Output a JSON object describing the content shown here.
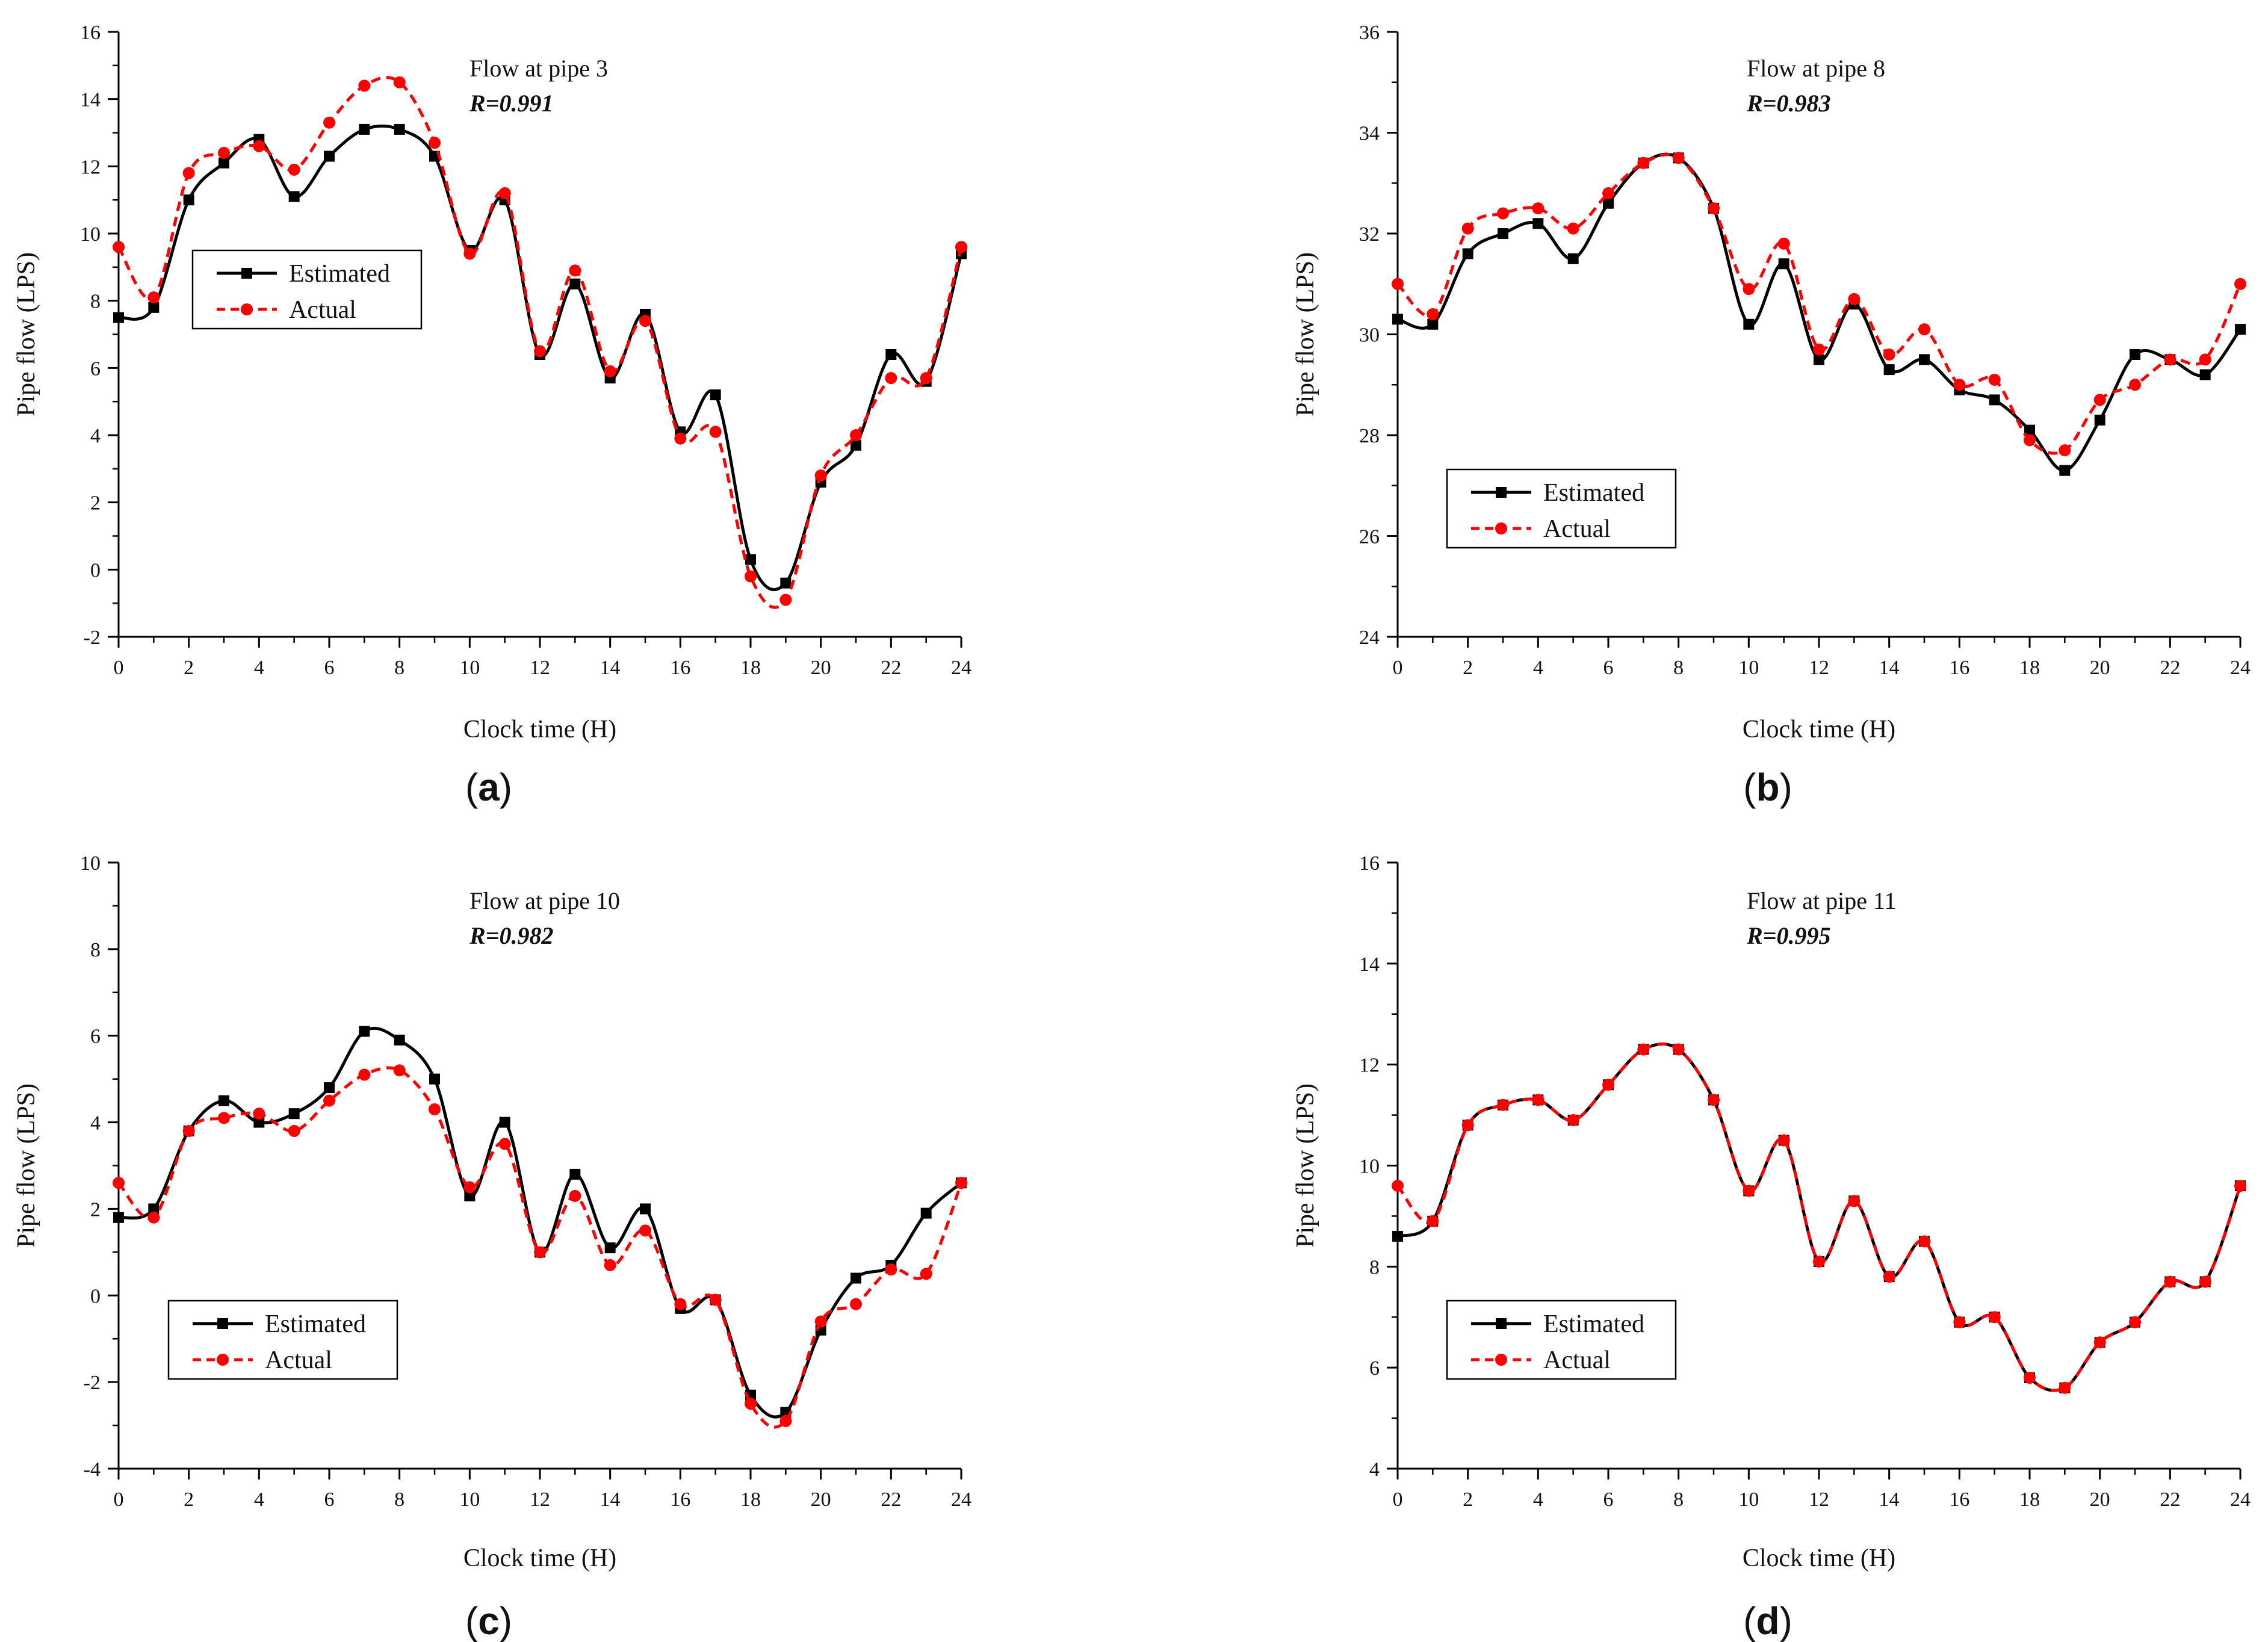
{
  "chart_data": [
    {
      "type": "line",
      "panel_label": "a",
      "annotation": "Flow at pipe 3",
      "r_label": "R=0.991",
      "xlabel": "Clock time (H)",
      "ylabel": "Pipe flow (LPS)",
      "xlim": [
        0,
        24
      ],
      "ylim": [
        -2,
        16
      ],
      "x_ticks": [
        0,
        2,
        4,
        6,
        8,
        10,
        12,
        14,
        16,
        18,
        20,
        22,
        24
      ],
      "y_ticks": [
        -2,
        0,
        2,
        4,
        6,
        8,
        10,
        12,
        14,
        16
      ],
      "legend_position": "middle-left",
      "series": [
        {
          "name": "Estimated",
          "color": "#000000",
          "marker": "square",
          "line": "solid",
          "x": [
            0,
            1,
            2,
            3,
            4,
            5,
            6,
            7,
            8,
            9,
            10,
            11,
            12,
            13,
            14,
            15,
            16,
            17,
            18,
            19,
            20,
            21,
            22,
            23,
            24
          ],
          "values": [
            7.5,
            7.8,
            11.0,
            12.1,
            12.8,
            11.1,
            12.3,
            13.1,
            13.1,
            12.3,
            9.5,
            11.0,
            6.4,
            8.5,
            5.7,
            7.6,
            4.1,
            5.2,
            0.3,
            -0.4,
            2.6,
            3.7,
            6.4,
            5.6,
            9.4
          ]
        },
        {
          "name": "Actual",
          "color": "#ff0000",
          "marker": "circle",
          "line": "dashed",
          "x": [
            0,
            1,
            2,
            3,
            4,
            5,
            6,
            7,
            8,
            9,
            10,
            11,
            12,
            13,
            14,
            15,
            16,
            17,
            18,
            19,
            20,
            21,
            22,
            23,
            24
          ],
          "values": [
            9.6,
            8.1,
            11.8,
            12.4,
            12.6,
            11.9,
            13.3,
            14.4,
            14.5,
            12.7,
            9.4,
            11.2,
            6.5,
            8.9,
            5.9,
            7.4,
            3.9,
            4.1,
            -0.2,
            -0.9,
            2.8,
            4.0,
            5.7,
            5.7,
            9.6
          ]
        }
      ]
    },
    {
      "type": "line",
      "panel_label": "b",
      "annotation": "Flow at pipe 8",
      "r_label": "R=0.983",
      "xlabel": "Clock time (H)",
      "ylabel": "Pipe flow (LPS)",
      "xlim": [
        0,
        24
      ],
      "ylim": [
        24,
        36
      ],
      "x_ticks": [
        0,
        2,
        4,
        6,
        8,
        10,
        12,
        14,
        16,
        18,
        20,
        22,
        24
      ],
      "y_ticks": [
        24,
        26,
        28,
        30,
        32,
        34,
        36
      ],
      "legend_position": "lower-left",
      "series": [
        {
          "name": "Estimated",
          "color": "#000000",
          "marker": "square",
          "line": "solid",
          "x": [
            0,
            1,
            2,
            3,
            4,
            5,
            6,
            7,
            8,
            9,
            10,
            11,
            12,
            13,
            14,
            15,
            16,
            17,
            18,
            19,
            20,
            21,
            22,
            23,
            24
          ],
          "values": [
            30.3,
            30.2,
            31.6,
            32.0,
            32.2,
            31.5,
            32.6,
            33.4,
            33.5,
            32.5,
            30.2,
            31.4,
            29.5,
            30.6,
            29.3,
            29.5,
            28.9,
            28.7,
            28.1,
            27.3,
            28.3,
            29.6,
            29.5,
            29.2,
            30.1
          ]
        },
        {
          "name": "Actual",
          "color": "#ff0000",
          "marker": "circle",
          "line": "dashed",
          "x": [
            0,
            1,
            2,
            3,
            4,
            5,
            6,
            7,
            8,
            9,
            10,
            11,
            12,
            13,
            14,
            15,
            16,
            17,
            18,
            19,
            20,
            21,
            22,
            23,
            24
          ],
          "values": [
            31.0,
            30.4,
            32.1,
            32.4,
            32.5,
            32.1,
            32.8,
            33.4,
            33.5,
            32.5,
            30.9,
            31.8,
            29.7,
            30.7,
            29.6,
            30.1,
            29.0,
            29.1,
            27.9,
            27.7,
            28.7,
            29.0,
            29.5,
            29.5,
            31.0
          ]
        }
      ]
    },
    {
      "type": "line",
      "panel_label": "c",
      "annotation": "Flow at pipe 10",
      "r_label": "R=0.982",
      "xlabel": "Clock time (H)",
      "ylabel": "Pipe flow (LPS)",
      "xlim": [
        0,
        24
      ],
      "ylim": [
        -4,
        10
      ],
      "x_ticks": [
        0,
        2,
        4,
        6,
        8,
        10,
        12,
        14,
        16,
        18,
        20,
        22,
        24
      ],
      "y_ticks": [
        -4,
        -2,
        0,
        2,
        4,
        6,
        8,
        10
      ],
      "legend_position": "lower-left",
      "series": [
        {
          "name": "Estimated",
          "color": "#000000",
          "marker": "square",
          "line": "solid",
          "x": [
            0,
            1,
            2,
            3,
            4,
            5,
            6,
            7,
            8,
            9,
            10,
            11,
            12,
            13,
            14,
            15,
            16,
            17,
            18,
            19,
            20,
            21,
            22,
            23,
            24
          ],
          "values": [
            1.8,
            2.0,
            3.8,
            4.5,
            4.0,
            4.2,
            4.8,
            6.1,
            5.9,
            5.0,
            2.3,
            4.0,
            1.0,
            2.8,
            1.1,
            2.0,
            -0.3,
            -0.1,
            -2.3,
            -2.7,
            -0.8,
            0.4,
            0.7,
            1.9,
            2.6
          ]
        },
        {
          "name": "Actual",
          "color": "#ff0000",
          "marker": "circle",
          "line": "dashed",
          "x": [
            0,
            1,
            2,
            3,
            4,
            5,
            6,
            7,
            8,
            9,
            10,
            11,
            12,
            13,
            14,
            15,
            16,
            17,
            18,
            19,
            20,
            21,
            22,
            23,
            24
          ],
          "values": [
            2.6,
            1.8,
            3.8,
            4.1,
            4.2,
            3.8,
            4.5,
            5.1,
            5.2,
            4.3,
            2.5,
            3.5,
            1.0,
            2.3,
            0.7,
            1.5,
            -0.2,
            -0.1,
            -2.5,
            -2.9,
            -0.6,
            -0.2,
            0.6,
            0.5,
            2.6
          ]
        }
      ]
    },
    {
      "type": "line",
      "panel_label": "d",
      "annotation": "Flow at pipe 11",
      "r_label": "R=0.995",
      "xlabel": "Clock time (H)",
      "ylabel": "Pipe flow (LPS)",
      "xlim": [
        0,
        24
      ],
      "ylim": [
        4,
        16
      ],
      "x_ticks": [
        0,
        2,
        4,
        6,
        8,
        10,
        12,
        14,
        16,
        18,
        20,
        22,
        24
      ],
      "y_ticks": [
        4,
        6,
        8,
        10,
        12,
        14,
        16
      ],
      "legend_position": "lower-left",
      "series": [
        {
          "name": "Estimated",
          "color": "#000000",
          "marker": "square",
          "line": "solid",
          "x": [
            0,
            1,
            2,
            3,
            4,
            5,
            6,
            7,
            8,
            9,
            10,
            11,
            12,
            13,
            14,
            15,
            16,
            17,
            18,
            19,
            20,
            21,
            22,
            23,
            24
          ],
          "values": [
            8.6,
            8.9,
            10.8,
            11.2,
            11.3,
            10.9,
            11.6,
            12.3,
            12.3,
            11.3,
            9.5,
            10.5,
            8.1,
            9.3,
            7.8,
            8.5,
            6.9,
            7.0,
            5.8,
            5.6,
            6.5,
            6.9,
            7.7,
            7.7,
            9.6
          ]
        },
        {
          "name": "Actual",
          "color": "#ff0000",
          "marker": "circle",
          "line": "dashed",
          "x": [
            0,
            1,
            2,
            3,
            4,
            5,
            6,
            7,
            8,
            9,
            10,
            11,
            12,
            13,
            14,
            15,
            16,
            17,
            18,
            19,
            20,
            21,
            22,
            23,
            24
          ],
          "values": [
            9.6,
            8.9,
            10.8,
            11.2,
            11.3,
            10.9,
            11.6,
            12.3,
            12.3,
            11.3,
            9.5,
            10.5,
            8.1,
            9.3,
            7.8,
            8.5,
            6.9,
            7.0,
            5.8,
            5.6,
            6.5,
            6.9,
            7.7,
            7.7,
            9.6
          ]
        }
      ]
    }
  ]
}
